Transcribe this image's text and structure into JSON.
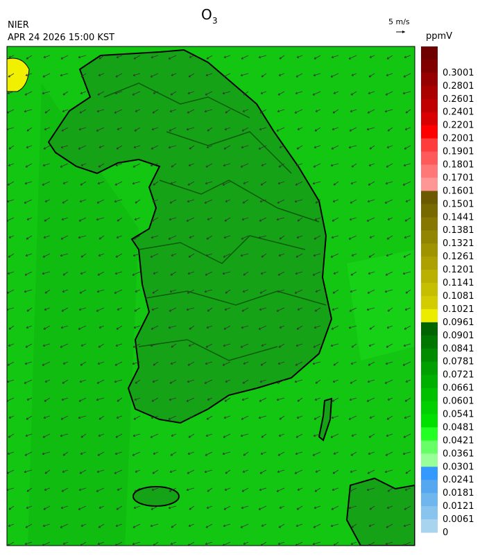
{
  "header": {
    "agency": "NIER",
    "datetime": "APR 24 2026 15:00 KST",
    "title": "O",
    "title_subscript": "3",
    "wind_reference": "5 m/s"
  },
  "colorbar": {
    "unit": "ppmV",
    "labels": [
      "0.3001",
      "0.2801",
      "0.2601",
      "0.2401",
      "0.2201",
      "0.2001",
      "0.1901",
      "0.1801",
      "0.1701",
      "0.1601",
      "0.1501",
      "0.1441",
      "0.1381",
      "0.1321",
      "0.1261",
      "0.1201",
      "0.1141",
      "0.1081",
      "0.1021",
      "0.0961",
      "0.0901",
      "0.0841",
      "0.0781",
      "0.0721",
      "0.0661",
      "0.0601",
      "0.0541",
      "0.0481",
      "0.0421",
      "0.0361",
      "0.0301",
      "0.0241",
      "0.0181",
      "0.0121",
      "0.0061",
      "0"
    ],
    "colors": [
      "#6e0000",
      "#800000",
      "#960000",
      "#aa0000",
      "#c00000",
      "#d80000",
      "#ff0000",
      "#ff3c3c",
      "#ff5a5a",
      "#ff7878",
      "#ff9696",
      "#6b5a00",
      "#786800",
      "#857700",
      "#928500",
      "#9f9300",
      "#aca100",
      "#b9b000",
      "#c6be00",
      "#d3cc00",
      "#ecec00",
      "#006400",
      "#007800",
      "#008c00",
      "#00a000",
      "#00b000",
      "#00c000",
      "#00d000",
      "#00e000",
      "#22ff22",
      "#66ff66",
      "#99ff99",
      "#3399ff",
      "#55a8f0",
      "#6fb6ee",
      "#88c4ee",
      "#a8d4f0"
    ]
  }
}
